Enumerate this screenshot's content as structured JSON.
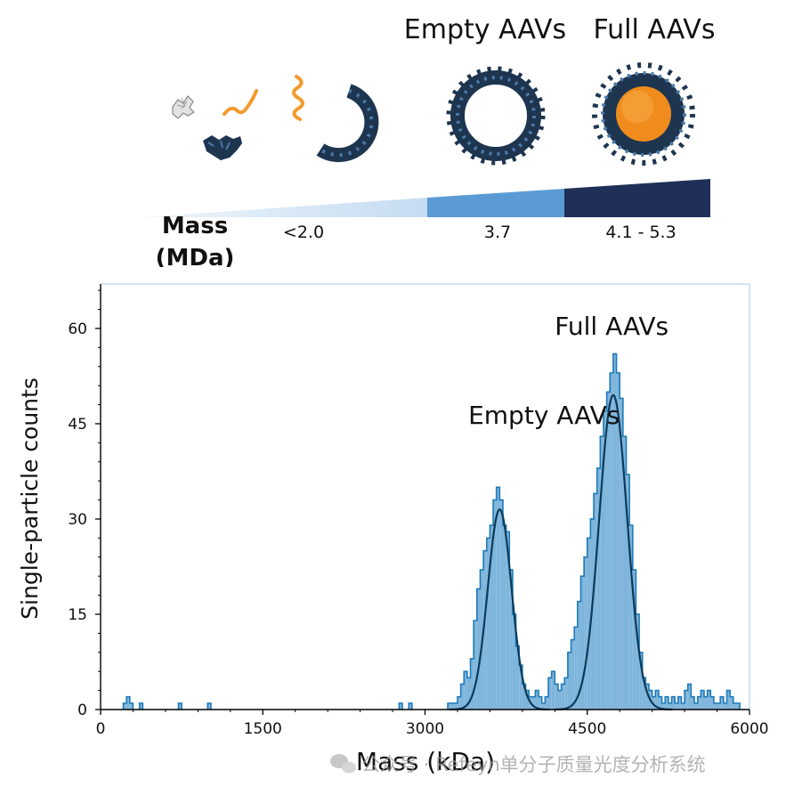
{
  "scheme": {
    "labels": {
      "empty": "Empty AAVs",
      "full": "Full AAVs"
    },
    "mass_label": "Mass",
    "mass_unit": "(MDa)",
    "mass_values": [
      "<2.0",
      "3.7",
      "4.1 - 5.3"
    ],
    "colors": {
      "light": "#c6dcf1",
      "mid": "#5b9bd5",
      "dark": "#1f2f57",
      "protein": "#1e3550",
      "dna": "#f29a2e"
    }
  },
  "chart_data": {
    "type": "bar",
    "xlabel": "Mass (kDa)",
    "ylabel": "Single-particle counts",
    "xlim": [
      0,
      6000
    ],
    "ylim": [
      0,
      67
    ],
    "xticks": [
      "0",
      "1500",
      "3000",
      "4500",
      "6000"
    ],
    "yticks": [
      "0",
      "15",
      "30",
      "45",
      "60"
    ],
    "bin_width": 30,
    "annotations": [
      {
        "text": "Empty AAVs",
        "x": 3400,
        "y": 45
      },
      {
        "text": "Full AAVs",
        "x": 4200,
        "y": 59
      }
    ],
    "series": [
      {
        "type": "histogram",
        "bins": [
          [
            210,
            1
          ],
          [
            240,
            2
          ],
          [
            270,
            1
          ],
          [
            360,
            1
          ],
          [
            720,
            1
          ],
          [
            990,
            1
          ],
          [
            2760,
            1
          ],
          [
            2850,
            1
          ],
          [
            3210,
            1
          ],
          [
            3240,
            1
          ],
          [
            3270,
            1
          ],
          [
            3300,
            2
          ],
          [
            3330,
            4
          ],
          [
            3360,
            6
          ],
          [
            3390,
            5
          ],
          [
            3420,
            8
          ],
          [
            3450,
            14
          ],
          [
            3480,
            19
          ],
          [
            3510,
            22
          ],
          [
            3540,
            25
          ],
          [
            3570,
            27
          ],
          [
            3600,
            29
          ],
          [
            3630,
            33
          ],
          [
            3660,
            35
          ],
          [
            3690,
            33
          ],
          [
            3720,
            29
          ],
          [
            3750,
            28
          ],
          [
            3780,
            22
          ],
          [
            3810,
            15
          ],
          [
            3840,
            10
          ],
          [
            3870,
            7
          ],
          [
            3900,
            4
          ],
          [
            3930,
            3
          ],
          [
            3960,
            2
          ],
          [
            3990,
            2
          ],
          [
            4020,
            3
          ],
          [
            4050,
            2
          ],
          [
            4080,
            1
          ],
          [
            4110,
            2
          ],
          [
            4140,
            5
          ],
          [
            4170,
            6
          ],
          [
            4200,
            4
          ],
          [
            4230,
            3
          ],
          [
            4260,
            4
          ],
          [
            4290,
            5
          ],
          [
            4320,
            9
          ],
          [
            4350,
            11
          ],
          [
            4380,
            13
          ],
          [
            4410,
            17
          ],
          [
            4440,
            21
          ],
          [
            4470,
            24
          ],
          [
            4500,
            27
          ],
          [
            4530,
            30
          ],
          [
            4560,
            34
          ],
          [
            4590,
            38
          ],
          [
            4620,
            43
          ],
          [
            4650,
            47
          ],
          [
            4680,
            50
          ],
          [
            4710,
            53
          ],
          [
            4740,
            56
          ],
          [
            4770,
            53
          ],
          [
            4800,
            49
          ],
          [
            4830,
            43
          ],
          [
            4860,
            37
          ],
          [
            4890,
            29
          ],
          [
            4920,
            22
          ],
          [
            4950,
            15
          ],
          [
            4980,
            9
          ],
          [
            5010,
            5
          ],
          [
            5040,
            4
          ],
          [
            5070,
            3
          ],
          [
            5100,
            2
          ],
          [
            5130,
            3
          ],
          [
            5160,
            2
          ],
          [
            5190,
            1
          ],
          [
            5220,
            2
          ],
          [
            5250,
            1
          ],
          [
            5280,
            2
          ],
          [
            5310,
            1
          ],
          [
            5340,
            2
          ],
          [
            5370,
            1
          ],
          [
            5400,
            3
          ],
          [
            5430,
            4
          ],
          [
            5460,
            2
          ],
          [
            5490,
            1
          ],
          [
            5520,
            2
          ],
          [
            5550,
            3
          ],
          [
            5580,
            2
          ],
          [
            5610,
            3
          ],
          [
            5640,
            2
          ],
          [
            5670,
            1
          ],
          [
            5700,
            1
          ],
          [
            5730,
            2
          ],
          [
            5760,
            1
          ],
          [
            5790,
            3
          ],
          [
            5820,
            2
          ],
          [
            5850,
            1
          ],
          [
            5880,
            1
          ]
        ]
      },
      {
        "type": "gaussian_fit",
        "peaks": [
          {
            "mean": 3690,
            "sd": 110,
            "height": 31.5
          },
          {
            "mean": 4740,
            "sd": 130,
            "height": 49.5
          }
        ]
      }
    ],
    "colors": {
      "fill": "#7fb5db",
      "edge": "#1f7ab8",
      "fit": "#0b3a5a",
      "axis": "#000000"
    }
  },
  "watermark": "公众号 · Refeyn单分子质量光度分析系统"
}
